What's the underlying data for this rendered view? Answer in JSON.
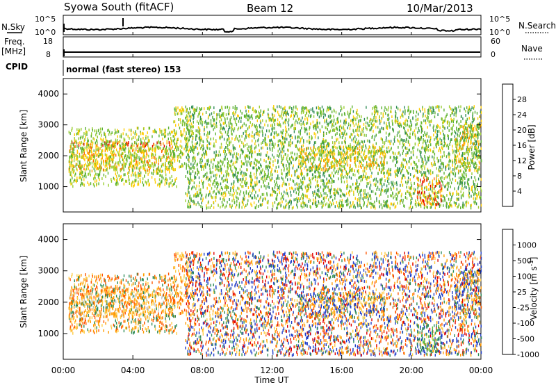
{
  "header": {
    "station": "Syowa South (fitACF)",
    "beam": "Beam 12",
    "date": "10/Mar/2013"
  },
  "side_labels": {
    "nsky": "N.Sky",
    "freq": "Freq.",
    "freq_unit": "[MHz]",
    "cpid": "CPID",
    "nsearch": "N.Search",
    "nave": "Nave"
  },
  "cpid_text": "normal (fast stereo) 153",
  "noise_axis": {
    "left_top": "10^5",
    "left_bottom": "10^0",
    "right_top": "10^5",
    "right_bottom": "10^0"
  },
  "freq_axis": {
    "left_top": "18",
    "left_bottom": "8",
    "right_top": "60",
    "right_bottom": "0"
  },
  "time_axis": {
    "title": "Time UT",
    "ticks": [
      "00:00",
      "04:00",
      "08:00",
      "12:00",
      "16:00",
      "20:00",
      "00:00"
    ],
    "hours": [
      0,
      4,
      8,
      12,
      16,
      20,
      24
    ]
  },
  "chart_data": [
    {
      "type": "heatmap",
      "name": "power",
      "ylabel": "Slant Range [km]",
      "xlim": [
        0,
        24
      ],
      "ylim": [
        180,
        4500
      ],
      "yticks": [
        1000,
        2000,
        3000,
        4000
      ],
      "colorbar": {
        "label": "Power [dB]",
        "ticks": [
          "28",
          "24",
          "20",
          "16",
          "12",
          "8",
          "4"
        ],
        "colors": [
          "#0000ff",
          "#3050b0",
          "#2e8b57",
          "#5ab030",
          "#9acd32",
          "#ffcc00",
          "#ff9900",
          "#ff6600",
          "#e00000"
        ]
      },
      "clusters": [
        {
          "t0": 0.2,
          "t1": 6.3,
          "r0": 2300,
          "r1": 2450,
          "colors": [
            6,
            7,
            8,
            8
          ]
        },
        {
          "t0": 0.3,
          "t1": 6.3,
          "r0": 1500,
          "r1": 2300,
          "colors": [
            4,
            5,
            6,
            7
          ]
        },
        {
          "t0": 0.3,
          "t1": 6.5,
          "r0": 1000,
          "r1": 2900,
          "colors": [
            3,
            4,
            5
          ]
        },
        {
          "t0": 6.3,
          "t1": 7.2,
          "r0": 1600,
          "r1": 3600,
          "colors": [
            3,
            4,
            5
          ]
        },
        {
          "t0": 7.0,
          "t1": 24.0,
          "r0": 300,
          "r1": 3600,
          "colors": [
            2,
            3,
            3,
            4,
            5
          ]
        },
        {
          "t0": 13.5,
          "t1": 18.5,
          "r0": 1500,
          "r1": 2300,
          "colors": [
            4,
            5,
            6
          ]
        },
        {
          "t0": 20.3,
          "t1": 21.7,
          "r0": 400,
          "r1": 1300,
          "colors": [
            5,
            6,
            7,
            8,
            8
          ]
        },
        {
          "t0": 22.5,
          "t1": 24.0,
          "r0": 1500,
          "r1": 3000,
          "colors": [
            3,
            4,
            5,
            6
          ]
        }
      ]
    },
    {
      "type": "heatmap",
      "name": "velocity",
      "ylabel": "Slant Range [km]",
      "xlim": [
        0,
        24
      ],
      "ylim": [
        180,
        4500
      ],
      "yticks": [
        1000,
        2000,
        3000,
        4000
      ],
      "colorbar": {
        "label": "Velocity [m s-1]",
        "ticks": [
          "1000",
          "500",
          "100",
          "25",
          "-25",
          "-100",
          "-500",
          "-1000"
        ],
        "colors": [
          "#e00000",
          "#ff5500",
          "#ff9900",
          "#ffcc44",
          "#c8c8c8",
          "#55c030",
          "#2e8b57",
          "#1e3cc8"
        ]
      },
      "clusters": [
        {
          "t0": 0.2,
          "t1": 6.3,
          "r0": 2300,
          "r1": 2450,
          "colors": [
            1,
            2,
            3,
            3
          ]
        },
        {
          "t0": 0.3,
          "t1": 6.3,
          "r0": 1500,
          "r1": 2300,
          "colors": [
            2,
            3,
            4
          ]
        },
        {
          "t0": 0.3,
          "t1": 6.5,
          "r0": 1000,
          "r1": 2900,
          "colors": [
            1,
            2,
            3,
            6
          ]
        },
        {
          "t0": 6.3,
          "t1": 7.2,
          "r0": 1600,
          "r1": 3600,
          "colors": [
            1,
            2,
            3
          ]
        },
        {
          "t0": 7.0,
          "t1": 24.0,
          "r0": 300,
          "r1": 3600,
          "colors": [
            0,
            1,
            2,
            3,
            6,
            7,
            7
          ]
        },
        {
          "t0": 13.5,
          "t1": 18.5,
          "r0": 1500,
          "r1": 2300,
          "colors": [
            2,
            3,
            6,
            7
          ]
        },
        {
          "t0": 20.3,
          "t1": 21.7,
          "r0": 400,
          "r1": 1300,
          "colors": [
            5,
            6,
            6,
            7
          ]
        },
        {
          "t0": 22.5,
          "t1": 24.0,
          "r0": 1500,
          "r1": 3000,
          "colors": [
            2,
            3,
            6,
            7
          ]
        }
      ]
    }
  ]
}
